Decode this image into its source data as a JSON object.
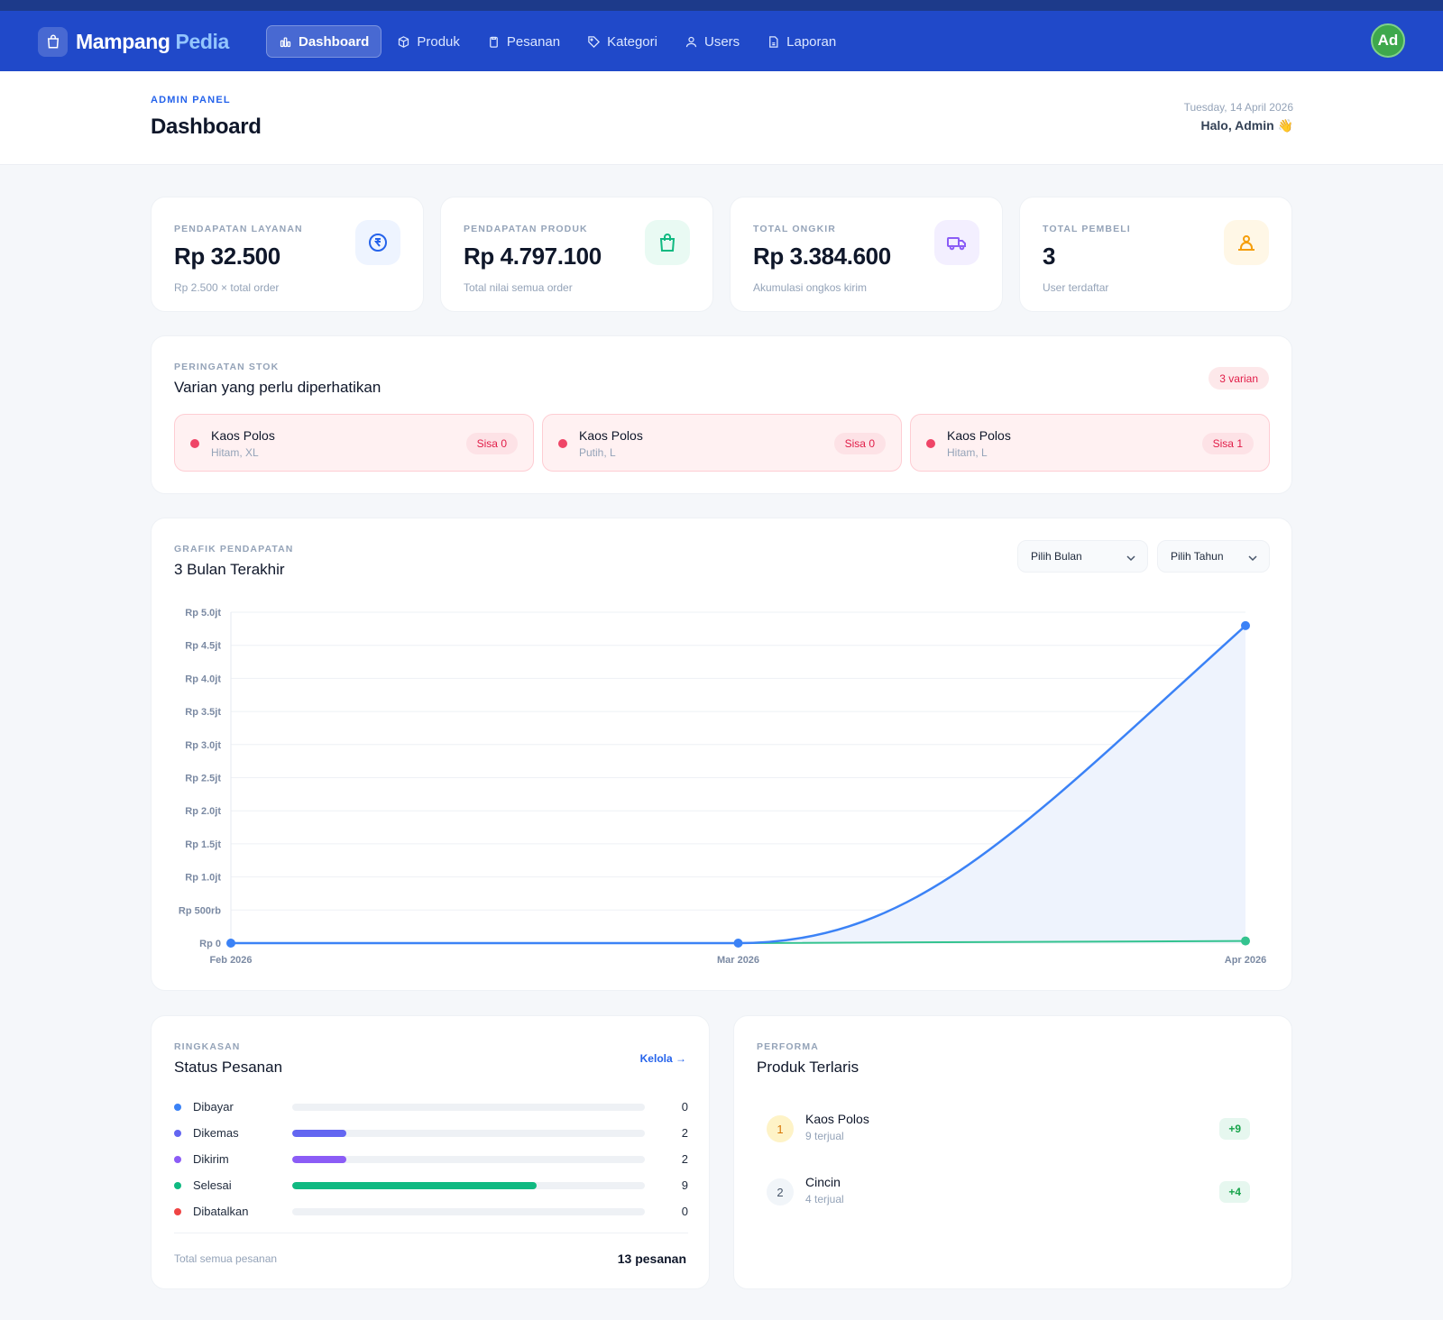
{
  "nav": {
    "brand_main": "Mampang",
    "brand_accent": "Pedia",
    "links": [
      {
        "label": "Dashboard",
        "icon": "bar-chart-icon",
        "active": true
      },
      {
        "label": "Produk",
        "icon": "box-icon"
      },
      {
        "label": "Pesanan",
        "icon": "clipboard-icon"
      },
      {
        "label": "Kategori",
        "icon": "tag-icon"
      },
      {
        "label": "Users",
        "icon": "users-icon"
      },
      {
        "label": "Laporan",
        "icon": "document-icon"
      }
    ],
    "avatar_initials": "Ad"
  },
  "header": {
    "eyebrow": "ADMIN PANEL",
    "title": "Dashboard",
    "date": "Tuesday, 14 April 2026",
    "greeting": "Halo, Admin 👋"
  },
  "stats": [
    {
      "label": "PENDAPATAN LAYANAN",
      "value": "Rp 32.500",
      "sub": "Rp 2.500 × total order",
      "icon": "currency-icon",
      "color": "#2563eb",
      "bg": "#eef4ff"
    },
    {
      "label": "PENDAPATAN PRODUK",
      "value": "Rp 4.797.100",
      "sub": "Total nilai semua order",
      "icon": "shopping-bag-icon",
      "color": "#10b981",
      "bg": "#e9faf3"
    },
    {
      "label": "TOTAL ONGKIR",
      "value": "Rp 3.384.600",
      "sub": "Akumulasi ongkos kirim",
      "icon": "truck-icon",
      "color": "#8b5cf6",
      "bg": "#f3efff"
    },
    {
      "label": "TOTAL PEMBELI",
      "value": "3",
      "sub": "User terdaftar",
      "icon": "user-group-icon",
      "color": "#f59e0b",
      "bg": "#fff7e6"
    }
  ],
  "stock": {
    "eyebrow": "PERINGATAN STOK",
    "title": "Varian yang perlu diperhatikan",
    "badge": "3 varian",
    "items": [
      {
        "name": "Kaos Polos",
        "variant": "Hitam, XL",
        "remaining": "Sisa 0"
      },
      {
        "name": "Kaos Polos",
        "variant": "Putih, L",
        "remaining": "Sisa 0"
      },
      {
        "name": "Kaos Polos",
        "variant": "Hitam, L",
        "remaining": "Sisa 1"
      }
    ]
  },
  "revenue": {
    "eyebrow": "GRAFIK PENDAPATAN",
    "title": "3 Bulan Terakhir",
    "month_select": "Pilih Bulan",
    "year_select": "Pilih Tahun"
  },
  "chart_data": {
    "type": "area",
    "x": [
      "Feb 2026",
      "Mar 2026",
      "Apr 2026"
    ],
    "series": [
      {
        "values": [
          0,
          0,
          4797100
        ],
        "color": "#3b82f6",
        "fill": "#eef3fd"
      },
      {
        "values": [
          0,
          0,
          32500
        ],
        "color": "#34c38f"
      }
    ],
    "yticks": [
      0,
      500000,
      1000000,
      1500000,
      2000000,
      2500000,
      3000000,
      3500000,
      4000000,
      4500000,
      5000000
    ],
    "ytick_labels": [
      "Rp 0",
      "Rp 500rb",
      "Rp 1.0jt",
      "Rp 1.5jt",
      "Rp 2.0jt",
      "Rp 2.5jt",
      "Rp 3.0jt",
      "Rp 3.5jt",
      "Rp 4.0jt",
      "Rp 4.5jt",
      "Rp 5.0jt"
    ],
    "ylim": [
      0,
      5000000
    ],
    "grid": true
  },
  "orders": {
    "eyebrow": "RINGKASAN",
    "title": "Status Pesanan",
    "manage_link": "Kelola →",
    "max": 13,
    "statuses": [
      {
        "label": "Dibayar",
        "count": "0",
        "value": 0,
        "color": "#3b82f6"
      },
      {
        "label": "Dikemas",
        "count": "2",
        "value": 2,
        "color": "#6366f1"
      },
      {
        "label": "Dikirim",
        "count": "2",
        "value": 2,
        "color": "#8b5cf6"
      },
      {
        "label": "Selesai",
        "count": "9",
        "value": 9,
        "color": "#10b981"
      },
      {
        "label": "Dibatalkan",
        "count": "0",
        "value": 0,
        "color": "#ef4444"
      }
    ],
    "total_label": "Total semua pesanan",
    "total_value": "13 pesanan"
  },
  "products": {
    "eyebrow": "PERFORMA",
    "title": "Produk Terlaris",
    "items": [
      {
        "rank": "1",
        "name": "Kaos Polos",
        "sold": "9 terjual",
        "badge": "+9",
        "rank_bg": "#fef3c7",
        "rank_color": "#d97706"
      },
      {
        "rank": "2",
        "name": "Cincin",
        "sold": "4 terjual",
        "badge": "+4",
        "rank_bg": "#f1f5f9",
        "rank_color": "#475569"
      }
    ]
  }
}
